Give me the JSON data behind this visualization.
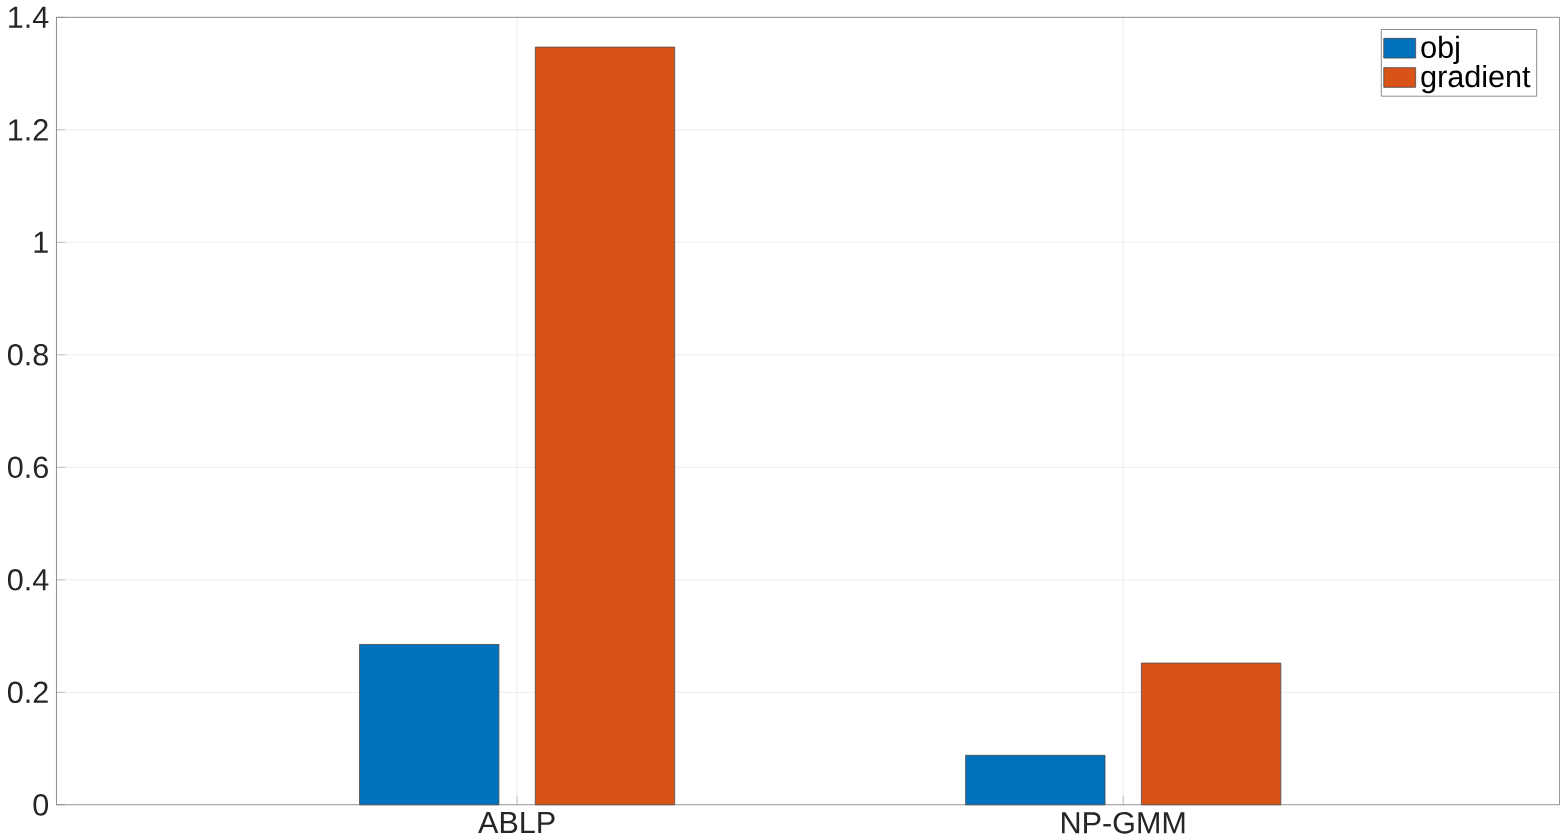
{
  "chart_data": {
    "type": "bar",
    "categories": [
      "ABLP",
      "NP-GMM"
    ],
    "series": [
      {
        "name": "obj",
        "color": "#0072bd",
        "values": [
          0.285,
          0.088
        ]
      },
      {
        "name": "gradient",
        "color": "#d95319",
        "values": [
          1.347,
          0.252
        ]
      }
    ],
    "ylim": [
      0,
      1.4
    ],
    "yticks": [
      0,
      0.2,
      0.4,
      0.6,
      0.8,
      1,
      1.2,
      1.4
    ],
    "grid": true,
    "legend": "top right"
  }
}
